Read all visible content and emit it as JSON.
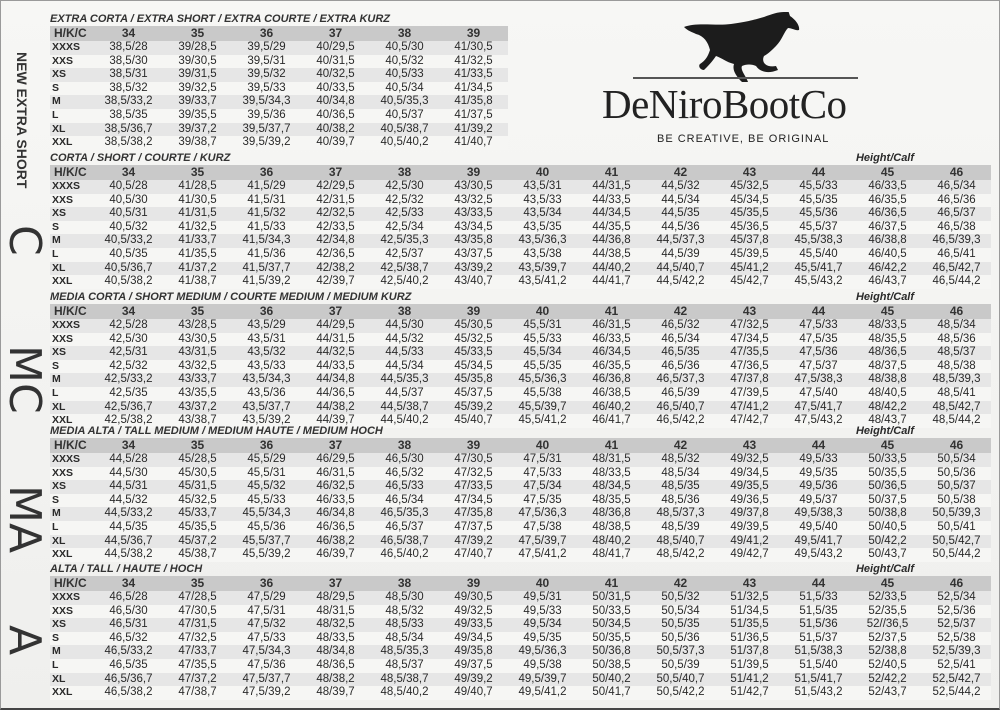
{
  "brand": {
    "name": "DeNiroBootCo",
    "tagline": "BE CREATIVE, BE ORIGINAL"
  },
  "height_calf_label": "Height/Calf",
  "header_label": "H/K/C",
  "sections": [
    {
      "side_label": "NEW EXTRA SHORT",
      "title": "EXTRA CORTA / EXTRA SHORT / EXTRA COURTE / EXTRA KURZ",
      "show_hc": false,
      "sizes": [
        "34",
        "35",
        "36",
        "37",
        "38",
        "39"
      ],
      "rows": [
        {
          "size": "XXXS",
          "cells": [
            "38,5/28",
            "39/28,5",
            "39,5/29",
            "40/29,5",
            "40,5/30",
            "41/30,5"
          ]
        },
        {
          "size": "XXS",
          "cells": [
            "38,5/30",
            "39/30,5",
            "39,5/31",
            "40/31,5",
            "40,5/32",
            "41/32,5"
          ]
        },
        {
          "size": "XS",
          "cells": [
            "38,5/31",
            "39/31,5",
            "39,5/32",
            "40/32,5",
            "40,5/33",
            "41/33,5"
          ]
        },
        {
          "size": "S",
          "cells": [
            "38,5/32",
            "39/32,5",
            "39,5/33",
            "40/33,5",
            "40,5/34",
            "41/34,5"
          ]
        },
        {
          "size": "M",
          "cells": [
            "38,5/33,2",
            "39/33,7",
            "39,5/34,3",
            "40/34,8",
            "40,5/35,3",
            "41/35,8"
          ]
        },
        {
          "size": "L",
          "cells": [
            "38,5/35",
            "39/35,5",
            "39,5/36",
            "40/36,5",
            "40,5/37",
            "41/37,5"
          ]
        },
        {
          "size": "XL",
          "cells": [
            "38,5/36,7",
            "39/37,2",
            "39,5/37,7",
            "40/38,2",
            "40,5/38,7",
            "41/39,2"
          ]
        },
        {
          "size": "XXL",
          "cells": [
            "38,5/38,2",
            "39/38,7",
            "39,5/39,2",
            "40/39,7",
            "40,5/40,2",
            "41/40,7"
          ]
        }
      ]
    },
    {
      "side_label": "C",
      "title": "CORTA / SHORT / COURTE / KURZ",
      "show_hc": true,
      "sizes": [
        "34",
        "35",
        "36",
        "37",
        "38",
        "39",
        "40",
        "41",
        "42",
        "43",
        "44",
        "45",
        "46"
      ],
      "rows": [
        {
          "size": "XXXS",
          "cells": [
            "40,5/28",
            "41/28,5",
            "41,5/29",
            "42/29,5",
            "42,5/30",
            "43/30,5",
            "43,5/31",
            "44/31,5",
            "44,5/32",
            "45/32,5",
            "45,5/33",
            "46/33,5",
            "46,5/34"
          ]
        },
        {
          "size": "XXS",
          "cells": [
            "40,5/30",
            "41/30,5",
            "41,5/31",
            "42/31,5",
            "42,5/32",
            "43/32,5",
            "43,5/33",
            "44/33,5",
            "44,5/34",
            "45/34,5",
            "45,5/35",
            "46/35,5",
            "46,5/36"
          ]
        },
        {
          "size": "XS",
          "cells": [
            "40,5/31",
            "41/31,5",
            "41,5/32",
            "42/32,5",
            "42,5/33",
            "43/33,5",
            "43,5/34",
            "44/34,5",
            "44,5/35",
            "45/35,5",
            "45,5/36",
            "46/36,5",
            "46,5/37"
          ]
        },
        {
          "size": "S",
          "cells": [
            "40,5/32",
            "41/32,5",
            "41,5/33",
            "42/33,5",
            "42,5/34",
            "43/34,5",
            "43,5/35",
            "44/35,5",
            "44,5/36",
            "45/36,5",
            "45,5/37",
            "46/37,5",
            "46,5/38"
          ]
        },
        {
          "size": "M",
          "cells": [
            "40,5/33,2",
            "41/33,7",
            "41,5/34,3",
            "42/34,8",
            "42,5/35,3",
            "43/35,8",
            "43,5/36,3",
            "44/36,8",
            "44,5/37,3",
            "45/37,8",
            "45,5/38,3",
            "46/38,8",
            "46,5/39,3"
          ]
        },
        {
          "size": "L",
          "cells": [
            "40,5/35",
            "41/35,5",
            "41,5/36",
            "42/36,5",
            "42,5/37",
            "43/37,5",
            "43,5/38",
            "44/38,5",
            "44,5/39",
            "45/39,5",
            "45,5/40",
            "46/40,5",
            "46,5/41"
          ]
        },
        {
          "size": "XL",
          "cells": [
            "40,5/36,7",
            "41/37,2",
            "41,5/37,7",
            "42/38,2",
            "42,5/38,7",
            "43/39,2",
            "43,5/39,7",
            "44/40,2",
            "44,5/40,7",
            "45/41,2",
            "45,5/41,7",
            "46/42,2",
            "46,5/42,7"
          ]
        },
        {
          "size": "XXL",
          "cells": [
            "40,5/38,2",
            "41/38,7",
            "41,5/39,2",
            "42/39,7",
            "42,5/40,2",
            "43/40,7",
            "43,5/41,2",
            "44/41,7",
            "44,5/42,2",
            "45/42,7",
            "45,5/43,2",
            "46/43,7",
            "46,5/44,2"
          ]
        }
      ]
    },
    {
      "side_label": "MC",
      "title": "MEDIA CORTA / SHORT MEDIUM / COURTE MEDIUM / MEDIUM KURZ",
      "show_hc": true,
      "sizes": [
        "34",
        "35",
        "36",
        "37",
        "38",
        "39",
        "40",
        "41",
        "42",
        "43",
        "44",
        "45",
        "46"
      ],
      "rows": [
        {
          "size": "XXXS",
          "cells": [
            "42,5/28",
            "43/28,5",
            "43,5/29",
            "44/29,5",
            "44,5/30",
            "45/30,5",
            "45,5/31",
            "46/31,5",
            "46,5/32",
            "47/32,5",
            "47,5/33",
            "48/33,5",
            "48,5/34"
          ]
        },
        {
          "size": "XXS",
          "cells": [
            "42,5/30",
            "43/30,5",
            "43,5/31",
            "44/31,5",
            "44,5/32",
            "45/32,5",
            "45,5/33",
            "46/33,5",
            "46,5/34",
            "47/34,5",
            "47,5/35",
            "48/35,5",
            "48,5/36"
          ]
        },
        {
          "size": "XS",
          "cells": [
            "42,5/31",
            "43/31,5",
            "43,5/32",
            "44/32,5",
            "44,5/33",
            "45/33,5",
            "45,5/34",
            "46/34,5",
            "46,5/35",
            "47/35,5",
            "47,5/36",
            "48/36,5",
            "48,5/37"
          ]
        },
        {
          "size": "S",
          "cells": [
            "42,5/32",
            "43/32,5",
            "43,5/33",
            "44/33,5",
            "44,5/34",
            "45/34,5",
            "45,5/35",
            "46/35,5",
            "46,5/36",
            "47/36,5",
            "47,5/37",
            "48/37,5",
            "48,5/38"
          ]
        },
        {
          "size": "M",
          "cells": [
            "42,5/33,2",
            "43/33,7",
            "43,5/34,3",
            "44/34,8",
            "44,5/35,3",
            "45/35,8",
            "45,5/36,3",
            "46/36,8",
            "46,5/37,3",
            "47/37,8",
            "47,5/38,3",
            "48/38,8",
            "48,5/39,3"
          ]
        },
        {
          "size": "L",
          "cells": [
            "42,5/35",
            "43/35,5",
            "43,5/36",
            "44/36,5",
            "44,5/37",
            "45/37,5",
            "45,5/38",
            "46/38,5",
            "46,5/39",
            "47/39,5",
            "47,5/40",
            "48/40,5",
            "48,5/41"
          ]
        },
        {
          "size": "XL",
          "cells": [
            "42,5/36,7",
            "43/37,2",
            "43,5/37,7",
            "44/38,2",
            "44,5/38,7",
            "45/39,2",
            "45,5/39,7",
            "46/40,2",
            "46,5/40,7",
            "47/41,2",
            "47,5/41,7",
            "48/42,2",
            "48,5/42,7"
          ]
        },
        {
          "size": "XXL",
          "cells": [
            "42,5/38,2",
            "43/38,7",
            "43,5/39,2",
            "44/39,7",
            "44,5/40,2",
            "45/40,7",
            "45,5/41,2",
            "46/41,7",
            "46,5/42,2",
            "47/42,7",
            "47,5/43,2",
            "48/43,7",
            "48,5/44,2"
          ]
        }
      ]
    },
    {
      "side_label": "MA",
      "title": "MEDIA ALTA / TALL MEDIUM / MEDIUM HAUTE / MEDIUM HOCH",
      "show_hc": true,
      "sizes": [
        "34",
        "35",
        "36",
        "37",
        "38",
        "39",
        "40",
        "41",
        "42",
        "43",
        "44",
        "45",
        "46"
      ],
      "rows": [
        {
          "size": "XXXS",
          "cells": [
            "44,5/28",
            "45/28,5",
            "45,5/29",
            "46/29,5",
            "46,5/30",
            "47/30,5",
            "47,5/31",
            "48/31,5",
            "48,5/32",
            "49/32,5",
            "49,5/33",
            "50/33,5",
            "50,5/34"
          ]
        },
        {
          "size": "XXS",
          "cells": [
            "44,5/30",
            "45/30,5",
            "45,5/31",
            "46/31,5",
            "46,5/32",
            "47/32,5",
            "47,5/33",
            "48/33,5",
            "48,5/34",
            "49/34,5",
            "49,5/35",
            "50/35,5",
            "50,5/36"
          ]
        },
        {
          "size": "XS",
          "cells": [
            "44,5/31",
            "45/31,5",
            "45,5/32",
            "46/32,5",
            "46,5/33",
            "47/33,5",
            "47,5/34",
            "48/34,5",
            "48,5/35",
            "49/35,5",
            "49,5/36",
            "50/36,5",
            "50,5/37"
          ]
        },
        {
          "size": "S",
          "cells": [
            "44,5/32",
            "45/32,5",
            "45,5/33",
            "46/33,5",
            "46,5/34",
            "47/34,5",
            "47,5/35",
            "48/35,5",
            "48,5/36",
            "49/36,5",
            "49,5/37",
            "50/37,5",
            "50,5/38"
          ]
        },
        {
          "size": "M",
          "cells": [
            "44,5/33,2",
            "45/33,7",
            "45,5/34,3",
            "46/34,8",
            "46,5/35,3",
            "47/35,8",
            "47,5/36,3",
            "48/36,8",
            "48,5/37,3",
            "49/37,8",
            "49,5/38,3",
            "50/38,8",
            "50,5/39,3"
          ]
        },
        {
          "size": "L",
          "cells": [
            "44,5/35",
            "45/35,5",
            "45,5/36",
            "46/36,5",
            "46,5/37",
            "47/37,5",
            "47,5/38",
            "48/38,5",
            "48,5/39",
            "49/39,5",
            "49,5/40",
            "50/40,5",
            "50,5/41"
          ]
        },
        {
          "size": "XL",
          "cells": [
            "44,5/36,7",
            "45/37,2",
            "45,5/37,7",
            "46/38,2",
            "46,5/38,7",
            "47/39,2",
            "47,5/39,7",
            "48/40,2",
            "48,5/40,7",
            "49/41,2",
            "49,5/41,7",
            "50/42,2",
            "50,5/42,7"
          ]
        },
        {
          "size": "XXL",
          "cells": [
            "44,5/38,2",
            "45/38,7",
            "45,5/39,2",
            "46/39,7",
            "46,5/40,2",
            "47/40,7",
            "47,5/41,2",
            "48/41,7",
            "48,5/42,2",
            "49/42,7",
            "49,5/43,2",
            "50/43,7",
            "50,5/44,2"
          ]
        }
      ]
    },
    {
      "side_label": "A",
      "title": "ALTA / TALL / HAUTE / HOCH",
      "show_hc": true,
      "sizes": [
        "34",
        "35",
        "36",
        "37",
        "38",
        "39",
        "40",
        "41",
        "42",
        "43",
        "44",
        "45",
        "46"
      ],
      "rows": [
        {
          "size": "XXXS",
          "cells": [
            "46,5/28",
            "47/28,5",
            "47,5/29",
            "48/29,5",
            "48,5/30",
            "49/30,5",
            "49,5/31",
            "50/31,5",
            "50,5/32",
            "51/32,5",
            "51,5/33",
            "52/33,5",
            "52,5/34"
          ]
        },
        {
          "size": "XXS",
          "cells": [
            "46,5/30",
            "47/30,5",
            "47,5/31",
            "48/31,5",
            "48,5/32",
            "49/32,5",
            "49,5/33",
            "50/33,5",
            "50,5/34",
            "51/34,5",
            "51,5/35",
            "52/35,5",
            "52,5/36"
          ]
        },
        {
          "size": "XS",
          "cells": [
            "46,5/31",
            "47/31,5",
            "47,5/32",
            "48/32,5",
            "48,5/33",
            "49/33,5",
            "49,5/34",
            "50/34,5",
            "50,5/35",
            "51/35,5",
            "51,5/36",
            "52//36,5",
            "52,5/37"
          ]
        },
        {
          "size": "S",
          "cells": [
            "46,5/32",
            "47/32,5",
            "47,5/33",
            "48/33,5",
            "48,5/34",
            "49/34,5",
            "49,5/35",
            "50/35,5",
            "50,5/36",
            "51/36,5",
            "51,5/37",
            "52/37,5",
            "52,5/38"
          ]
        },
        {
          "size": "M",
          "cells": [
            "46,5/33,2",
            "47/33,7",
            "47,5/34,3",
            "48/34,8",
            "48,5/35,3",
            "49/35,8",
            "49,5/36,3",
            "50/36,8",
            "50,5/37,3",
            "51/37,8",
            "51,5/38,3",
            "52/38,8",
            "52,5/39,3"
          ]
        },
        {
          "size": "L",
          "cells": [
            "46,5/35",
            "47/35,5",
            "47,5/36",
            "48/36,5",
            "48,5/37",
            "49/37,5",
            "49,5/38",
            "50/38,5",
            "50,5/39",
            "51/39,5",
            "51,5/40",
            "52/40,5",
            "52,5/41"
          ]
        },
        {
          "size": "XL",
          "cells": [
            "46,5/36,7",
            "47/37,2",
            "47,5/37,7",
            "48/38,2",
            "48,5/38,7",
            "49/39,2",
            "49,5/39,7",
            "50/40,2",
            "50,5/40,7",
            "51/41,2",
            "51,5/41,7",
            "52/42,2",
            "52,5/42,7"
          ]
        },
        {
          "size": "XXL",
          "cells": [
            "46,5/38,2",
            "47/38,7",
            "47,5/39,2",
            "48/39,7",
            "48,5/40,2",
            "49/40,7",
            "49,5/41,2",
            "50/41,7",
            "50,5/42,2",
            "51/42,7",
            "51,5/43,2",
            "52/43,7",
            "52,5/44,2"
          ]
        }
      ]
    }
  ]
}
